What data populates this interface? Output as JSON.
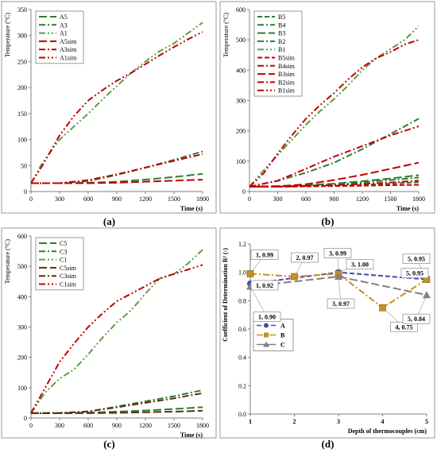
{
  "chart_data": [
    {
      "panel": "a",
      "type": "line",
      "caption": "(a)",
      "ylabel": "Temperature (°C)",
      "xlabel": "Time (s)",
      "xlim": [
        0,
        1800
      ],
      "ylim": [
        0,
        350
      ],
      "xticks": [
        "0",
        "300",
        "600",
        "900",
        "1200",
        "1500",
        "1800"
      ],
      "yticks": [
        "0",
        "50",
        "100",
        "150",
        "200",
        "250",
        "300",
        "350"
      ],
      "legend_position": "top-left",
      "grid": false,
      "series": [
        {
          "name": "A5",
          "color": "#2e7d32",
          "dash": "long-dash",
          "x": [
            0,
            300,
            600,
            900,
            1200,
            1500,
            1800
          ],
          "y": [
            16,
            16,
            17,
            19,
            23,
            28,
            34
          ]
        },
        {
          "name": "A3",
          "color": "#2e7d32",
          "dash": "dash-dot",
          "x": [
            0,
            300,
            600,
            900,
            1200,
            1500,
            1800
          ],
          "y": [
            16,
            16,
            20,
            32,
            46,
            61,
            77
          ]
        },
        {
          "name": "A1",
          "color": "#5b9e46",
          "dash": "dash-dot-dot",
          "x": [
            0,
            120,
            300,
            450,
            600,
            750,
            900,
            1050,
            1200,
            1350,
            1500,
            1650,
            1800
          ],
          "y": [
            16,
            55,
            100,
            125,
            150,
            177,
            203,
            228,
            250,
            270,
            285,
            305,
            325
          ]
        },
        {
          "name": "A5sim",
          "color": "#c00000",
          "dash": "long-dash",
          "x": [
            0,
            300,
            600,
            900,
            1200,
            1500,
            1800
          ],
          "y": [
            16,
            16,
            16,
            17,
            19,
            21,
            23
          ]
        },
        {
          "name": "A3sim",
          "color": "#c00000",
          "dash": "dash-dot",
          "x": [
            0,
            300,
            600,
            900,
            1200,
            1500,
            1800
          ],
          "y": [
            16,
            16,
            22,
            33,
            46,
            59,
            72
          ]
        },
        {
          "name": "A1sim",
          "color": "#c00000",
          "dash": "dash-dot-dot",
          "x": [
            0,
            120,
            300,
            450,
            600,
            750,
            900,
            1050,
            1200,
            1350,
            1500,
            1650,
            1800
          ],
          "y": [
            16,
            50,
            108,
            145,
            175,
            195,
            213,
            228,
            245,
            262,
            278,
            293,
            307
          ]
        }
      ]
    },
    {
      "panel": "b",
      "type": "line",
      "caption": "(b)",
      "ylabel": "Temperature (°C)",
      "xlabel": "Time (s)",
      "xlim": [
        0,
        1800
      ],
      "ylim": [
        0,
        600
      ],
      "xticks": [
        "0",
        "300",
        "600",
        "900",
        "1200",
        "1500",
        "1800"
      ],
      "yticks": [
        "0",
        "100",
        "200",
        "300",
        "400",
        "500",
        "600"
      ],
      "legend_position": "top-left",
      "grid": false,
      "series": [
        {
          "name": "B5",
          "color": "#2e7d32",
          "dash": "dash",
          "x": [
            0,
            300,
            600,
            900,
            1200,
            1500,
            1800
          ],
          "y": [
            16,
            16,
            17,
            19,
            22,
            26,
            31
          ]
        },
        {
          "name": "B4",
          "color": "#2e7d32",
          "dash": "dash-dot",
          "x": [
            0,
            300,
            600,
            900,
            1200,
            1500,
            1800
          ],
          "y": [
            16,
            17,
            19,
            23,
            30,
            38,
            46
          ]
        },
        {
          "name": "B3",
          "color": "#2e7d32",
          "dash": "long-dash",
          "x": [
            0,
            300,
            600,
            900,
            1200,
            1500,
            1800
          ],
          "y": [
            16,
            18,
            21,
            26,
            34,
            43,
            54
          ]
        },
        {
          "name": "B2",
          "color": "#2e7d32",
          "dash": "dash-dot",
          "x": [
            0,
            300,
            600,
            900,
            1200,
            1500,
            1800
          ],
          "y": [
            16,
            35,
            62,
            95,
            140,
            190,
            240
          ]
        },
        {
          "name": "B1",
          "color": "#5b9e46",
          "dash": "dash-dot-dot",
          "x": [
            0,
            150,
            300,
            450,
            600,
            750,
            900,
            1050,
            1200,
            1350,
            1500,
            1650,
            1800
          ],
          "y": [
            16,
            70,
            120,
            170,
            220,
            265,
            305,
            350,
            400,
            440,
            470,
            500,
            545
          ]
        },
        {
          "name": "B5sim",
          "color": "#c00000",
          "dash": "dash",
          "x": [
            0,
            300,
            600,
            900,
            1200,
            1500,
            1800
          ],
          "y": [
            16,
            16,
            17,
            18,
            19,
            21,
            22
          ]
        },
        {
          "name": "B4sim",
          "color": "#c00000",
          "dash": "dash-dot",
          "x": [
            0,
            300,
            600,
            900,
            1200,
            1500,
            1800
          ],
          "y": [
            16,
            16,
            18,
            21,
            25,
            30,
            36
          ]
        },
        {
          "name": "B3sim",
          "color": "#c00000",
          "dash": "long-dash",
          "x": [
            0,
            300,
            600,
            900,
            1200,
            1500,
            1800
          ],
          "y": [
            16,
            17,
            24,
            38,
            55,
            75,
            95
          ]
        },
        {
          "name": "B2sim",
          "color": "#c00000",
          "dash": "dash-dot",
          "x": [
            0,
            300,
            600,
            900,
            1200,
            1500,
            1800
          ],
          "y": [
            16,
            36,
            75,
            115,
            150,
            185,
            215
          ]
        },
        {
          "name": "B1sim",
          "color": "#c00000",
          "dash": "dash-dot-dot",
          "x": [
            0,
            150,
            300,
            450,
            600,
            750,
            900,
            1050,
            1200,
            1350,
            1500,
            1650,
            1800
          ],
          "y": [
            16,
            60,
            125,
            185,
            240,
            285,
            325,
            370,
            410,
            440,
            460,
            485,
            500
          ]
        }
      ]
    },
    {
      "panel": "c",
      "type": "line",
      "caption": "(c)",
      "ylabel": "Temperature (°C)",
      "xlabel": "Time (s)",
      "xlim": [
        0,
        1800
      ],
      "ylim": [
        0,
        600
      ],
      "xticks": [
        "0",
        "300",
        "600",
        "900",
        "1200",
        "1500",
        "1800"
      ],
      "yticks": [
        "0",
        "100",
        "200",
        "300",
        "400",
        "500",
        "600"
      ],
      "legend_position": "top-left",
      "grid": false,
      "series": [
        {
          "name": "C5",
          "color": "#2e7d32",
          "dash": "long-dash",
          "x": [
            0,
            300,
            600,
            900,
            1200,
            1500,
            1800
          ],
          "y": [
            16,
            16,
            18,
            21,
            25,
            30,
            36
          ]
        },
        {
          "name": "C3",
          "color": "#2e7d32",
          "dash": "dash-dot",
          "x": [
            0,
            300,
            600,
            900,
            1200,
            1500,
            1800
          ],
          "y": [
            16,
            17,
            21,
            38,
            55,
            72,
            92
          ]
        },
        {
          "name": "C1",
          "color": "#5b9e46",
          "dash": "dash-dot-dot",
          "x": [
            0,
            150,
            300,
            450,
            600,
            750,
            900,
            1050,
            1200,
            1350,
            1500,
            1650,
            1800
          ],
          "y": [
            16,
            85,
            130,
            160,
            210,
            265,
            315,
            355,
            410,
            460,
            475,
            510,
            555
          ]
        },
        {
          "name": "C5sim",
          "color": "#5a3010",
          "dash": "long-dash",
          "x": [
            0,
            300,
            600,
            900,
            1200,
            1500,
            1800
          ],
          "y": [
            16,
            16,
            16,
            17,
            19,
            21,
            24
          ]
        },
        {
          "name": "C3sim",
          "color": "#5a3010",
          "dash": "dash-dot",
          "x": [
            0,
            300,
            600,
            900,
            1200,
            1500,
            1800
          ],
          "y": [
            16,
            16,
            22,
            35,
            50,
            65,
            82
          ]
        },
        {
          "name": "C1sim",
          "color": "#c00000",
          "dash": "dash-dot-dot",
          "x": [
            0,
            150,
            300,
            450,
            600,
            750,
            900,
            1050,
            1200,
            1350,
            1500,
            1650,
            1800
          ],
          "y": [
            16,
            100,
            185,
            245,
            300,
            345,
            385,
            410,
            435,
            460,
            475,
            490,
            505
          ]
        }
      ]
    },
    {
      "panel": "d",
      "type": "line",
      "caption": "(d)",
      "ylabel": "Coefficient of Determination R² (-)",
      "xlabel": "Depth of thermocouples (cm)",
      "xlim": [
        1,
        5
      ],
      "ylim": [
        0,
        1.2
      ],
      "xticks": [
        "1",
        "2",
        "3",
        "4",
        "5"
      ],
      "yticks": [
        "0.0",
        "0.2",
        "0.4",
        "0.6",
        "0.8",
        "1.0",
        "1.2"
      ],
      "legend_position": "center-left",
      "grid": false,
      "series": [
        {
          "name": "A",
          "color": "#4646b0",
          "dash": "dash",
          "marker": "circle",
          "x": [
            1,
            3,
            5
          ],
          "y": [
            0.92,
            1.0,
            0.95
          ]
        },
        {
          "name": "B",
          "color": "#c8901c",
          "dash": "dash-dot",
          "marker": "square",
          "x": [
            1,
            2,
            3,
            4,
            5
          ],
          "y": [
            0.99,
            0.97,
            0.99,
            0.75,
            0.95
          ]
        },
        {
          "name": "C",
          "color": "#808080",
          "dash": "long-dash",
          "marker": "triangle",
          "x": [
            1,
            3,
            5
          ],
          "y": [
            0.9,
            0.97,
            0.84
          ]
        }
      ],
      "annotations": [
        {
          "text": "1, 0.99",
          "x": 1,
          "y": 0.99
        },
        {
          "text": "1, 0.92",
          "x": 1,
          "y": 0.92
        },
        {
          "text": "1, 0.90",
          "x": 1,
          "y": 0.9
        },
        {
          "text": "2, 0.97",
          "x": 2,
          "y": 0.97
        },
        {
          "text": "3, 0.99",
          "x": 3,
          "y": 0.99
        },
        {
          "text": "3, 1.00",
          "x": 3,
          "y": 1.0
        },
        {
          "text": "3, 0.97",
          "x": 3,
          "y": 0.97
        },
        {
          "text": "4, 0.75",
          "x": 4,
          "y": 0.75
        },
        {
          "text": "5, 0.95",
          "x": 5,
          "y": 0.95
        },
        {
          "text": "5, 0.95",
          "x": 5,
          "y": 0.95
        },
        {
          "text": "5, 0.84",
          "x": 5,
          "y": 0.84
        }
      ]
    }
  ]
}
